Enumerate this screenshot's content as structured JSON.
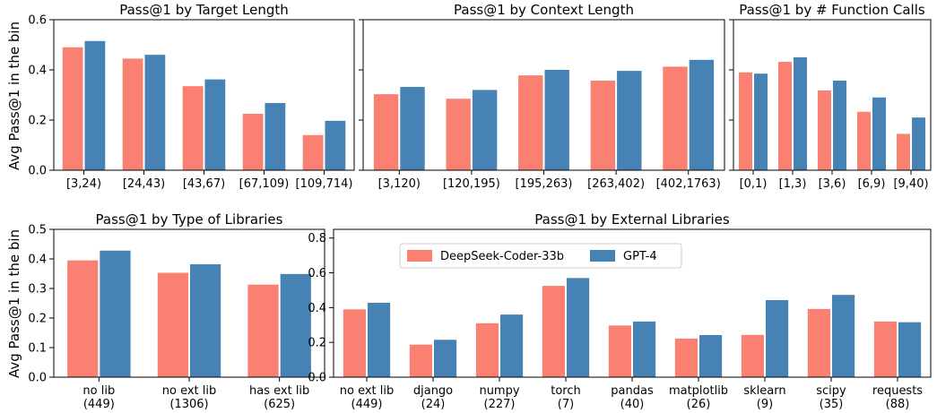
{
  "colors": {
    "series_a": "#fa8072",
    "series_b": "#4682b4"
  },
  "legend": [
    "DeepSeek-Coder-33b",
    "GPT-4"
  ],
  "chart_data": [
    {
      "type": "bar",
      "title": "Pass@1 by Target Length",
      "ylabel": "Avg Pass@1 in the bin",
      "ylim": [
        0,
        0.6
      ],
      "yticks": [
        "0.0",
        "0.2",
        "0.4",
        "0.6"
      ],
      "categories": [
        "[3,24)",
        "[24,43)",
        "[43,67)",
        "[67,109)",
        "[109,714)"
      ],
      "series": [
        {
          "name": "DeepSeek-Coder-33b",
          "values": [
            0.49,
            0.445,
            0.335,
            0.225,
            0.14
          ]
        },
        {
          "name": "GPT-4",
          "values": [
            0.515,
            0.46,
            0.362,
            0.268,
            0.197
          ]
        }
      ]
    },
    {
      "type": "bar",
      "title": "Pass@1 by Context Length",
      "ylim": [
        0,
        0.6
      ],
      "categories": [
        "[3,120)",
        "[120,195)",
        "[195,263)",
        "[263,402)",
        "[402,1763)"
      ],
      "series": [
        {
          "name": "DeepSeek-Coder-33b",
          "values": [
            0.303,
            0.285,
            0.378,
            0.357,
            0.413
          ]
        },
        {
          "name": "GPT-4",
          "values": [
            0.332,
            0.32,
            0.4,
            0.396,
            0.44
          ]
        }
      ]
    },
    {
      "type": "bar",
      "title": "Pass@1 by # Function Calls",
      "ylim": [
        0,
        0.6
      ],
      "categories": [
        "[0,1)",
        "[1,3)",
        "[3,6)",
        "[6,9)",
        "[9,40)"
      ],
      "series": [
        {
          "name": "DeepSeek-Coder-33b",
          "values": [
            0.39,
            0.432,
            0.318,
            0.233,
            0.145
          ]
        },
        {
          "name": "GPT-4",
          "values": [
            0.385,
            0.45,
            0.357,
            0.29,
            0.21
          ]
        }
      ]
    },
    {
      "type": "bar",
      "title": "Pass@1 by Type of Libraries",
      "ylabel": "Avg Pass@1 in the bin",
      "ylim": [
        0,
        0.5
      ],
      "yticks": [
        "0.0",
        "0.1",
        "0.2",
        "0.3",
        "0.4",
        "0.5"
      ],
      "categories": [
        "no lib",
        "no ext lib",
        "has ext lib"
      ],
      "category_counts": [
        "(449)",
        "(1306)",
        "(625)"
      ],
      "series": [
        {
          "name": "DeepSeek-Coder-33b",
          "values": [
            0.395,
            0.353,
            0.313
          ]
        },
        {
          "name": "GPT-4",
          "values": [
            0.428,
            0.382,
            0.349
          ]
        }
      ]
    },
    {
      "type": "bar",
      "title": "Pass@1 by External Libraries",
      "ylim": [
        0,
        0.85
      ],
      "yticks": [
        "0.0",
        "0.2",
        "0.4",
        "0.6",
        "0.8"
      ],
      "legend_position": "upper-left",
      "categories": [
        "no ext lib",
        "django",
        "numpy",
        "torch",
        "pandas",
        "matplotlib",
        "sklearn",
        "scipy",
        "requests"
      ],
      "category_counts": [
        "(449)",
        "(24)",
        "(227)",
        "(7)",
        "(40)",
        "(26)",
        "(9)",
        "(35)",
        "(88)"
      ],
      "series": [
        {
          "name": "DeepSeek-Coder-33b",
          "values": [
            0.39,
            0.187,
            0.31,
            0.525,
            0.297,
            0.222,
            0.243,
            0.392,
            0.32
          ]
        },
        {
          "name": "GPT-4",
          "values": [
            0.428,
            0.215,
            0.36,
            0.57,
            0.32,
            0.242,
            0.443,
            0.473,
            0.316
          ]
        }
      ]
    }
  ]
}
